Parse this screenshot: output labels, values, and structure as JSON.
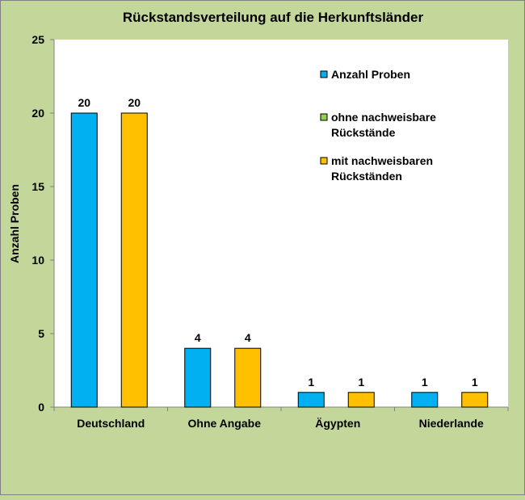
{
  "chart_data": {
    "type": "bar",
    "title": "Rückstandsverteilung auf die Herkunftsländer",
    "xlabel": "",
    "ylabel": "Anzahl Proben",
    "ylim": [
      0,
      25
    ],
    "yticks": [
      0,
      5,
      10,
      15,
      20,
      25
    ],
    "grid": false,
    "legend_placement": "top-right",
    "categories": [
      "Deutschland",
      "Ohne Angabe",
      "Ägypten",
      "Niederlande"
    ],
    "series": [
      {
        "name": "Anzahl Proben",
        "values": [
          20,
          4,
          1,
          1
        ],
        "color": "#00b0f0"
      },
      {
        "name": "ohne nachweisbare Rückstände",
        "values": [
          0,
          0,
          0,
          0
        ],
        "color": "#92d050"
      },
      {
        "name": "mit nachweisbaren Rückständen",
        "values": [
          20,
          4,
          1,
          1
        ],
        "color": "#ffc000"
      }
    ],
    "legend_lines": [
      [
        "Anzahl Proben"
      ],
      [
        "ohne nachweisbare",
        "Rückstände"
      ],
      [
        "mit nachweisbaren",
        "Rückständen"
      ]
    ],
    "background_color": "#c4d79b",
    "plot_background": "#ffffff"
  }
}
